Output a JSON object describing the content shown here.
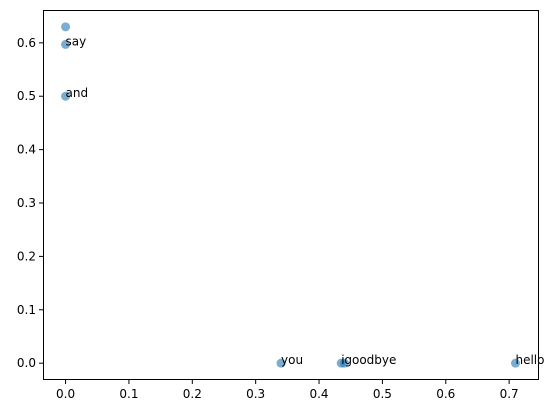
{
  "chart_data": {
    "type": "scatter",
    "title": "",
    "xlabel": "",
    "ylabel": "",
    "xlim": [
      -0.0356,
      0.7471
    ],
    "ylim": [
      -0.0315,
      0.6615
    ],
    "xticks": [
      0.0,
      0.1,
      0.2,
      0.3,
      0.4,
      0.5,
      0.6,
      0.7
    ],
    "xtick_labels": [
      "0.0",
      "0.1",
      "0.2",
      "0.3",
      "0.4",
      "0.5",
      "0.6",
      "0.7"
    ],
    "yticks": [
      0.0,
      0.1,
      0.2,
      0.3,
      0.4,
      0.5,
      0.6
    ],
    "ytick_labels": [
      "0.0",
      "0.1",
      "0.2",
      "0.3",
      "0.4",
      "0.5",
      "0.6"
    ],
    "grid": false,
    "marker_color": "#1f77b4",
    "marker_alpha": 0.6,
    "points": [
      {
        "label": "",
        "x": 0.0,
        "y": 0.63
      },
      {
        "label": "say",
        "x": 0.0,
        "y": 0.597
      },
      {
        "label": "and",
        "x": 0.0,
        "y": 0.5
      },
      {
        "label": "you",
        "x": 0.34,
        "y": 0.0
      },
      {
        "label": "i",
        "x": 0.435,
        "y": 0.0
      },
      {
        "label": "goodbye",
        "x": 0.44,
        "y": 0.0
      },
      {
        "label": "hello",
        "x": 0.71,
        "y": 0.0
      }
    ]
  }
}
